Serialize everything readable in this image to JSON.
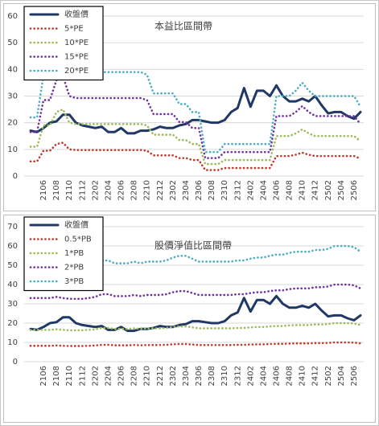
{
  "chart_data": [
    {
      "type": "line",
      "annotation": "本益比區間帶",
      "categories": [
        null,
        null,
        "2106",
        null,
        "2108",
        null,
        "2110",
        null,
        "2112",
        null,
        "2202",
        null,
        "2204",
        null,
        "2206",
        null,
        "2208",
        null,
        "2210",
        null,
        "2212",
        null,
        "2302",
        null,
        "2304",
        null,
        "2306",
        null,
        "2308",
        null,
        "2310",
        null,
        "2312",
        null,
        "2402",
        null,
        "2404",
        null,
        "2406",
        null,
        "2408",
        null,
        "2410",
        null,
        "2412",
        null,
        "2502",
        null,
        "2504",
        null,
        "2506",
        null
      ],
      "ylim": [
        0,
        60
      ],
      "yticks": [
        0,
        10,
        20,
        30,
        40,
        50,
        60
      ],
      "grid": true,
      "legend": "top-left",
      "series": [
        {
          "name": "收盤價",
          "color": "#1f3864",
          "values": [
            17,
            16.5,
            18,
            20,
            20.5,
            23,
            23,
            20,
            19,
            18.5,
            18,
            18.5,
            16.5,
            16.5,
            18,
            16,
            16,
            17,
            17,
            17.5,
            18.5,
            18,
            18,
            19,
            19.5,
            21,
            21,
            20.5,
            20,
            20,
            21,
            24,
            25.5,
            33,
            26,
            32,
            32,
            30,
            34,
            30,
            28,
            28,
            29,
            28,
            30,
            26.5,
            23.5,
            24,
            24,
            22.5,
            21.5,
            24
          ]
        },
        {
          "name": "5*PE",
          "color": "#c0392b",
          "values": [
            5.5,
            5.5,
            9.5,
            9.5,
            12,
            12.5,
            10,
            9.75,
            9.75,
            9.75,
            9.75,
            9.75,
            9.75,
            9.75,
            9.75,
            9.75,
            9.75,
            9.75,
            9.5,
            7.75,
            7.75,
            7.75,
            7.75,
            6.75,
            6.75,
            6,
            6,
            2.25,
            2.25,
            2.25,
            3,
            3,
            3,
            3,
            3,
            3,
            3,
            3,
            7.5,
            7.5,
            7.5,
            8,
            8.75,
            8,
            7.5,
            7.5,
            7.5,
            7.5,
            7.5,
            7.5,
            7.5,
            6.5
          ]
        },
        {
          "name": "10*PE",
          "color": "#9bbb59",
          "values": [
            11,
            11,
            19,
            19,
            24,
            25,
            20,
            19.5,
            19.5,
            19.5,
            19.5,
            19.5,
            19.5,
            19.5,
            19.5,
            19.5,
            19.5,
            19.5,
            19,
            15.5,
            15.5,
            15.5,
            15.5,
            13.5,
            13.5,
            12,
            12,
            4.5,
            4.5,
            4.5,
            6,
            6,
            6,
            6,
            6,
            6,
            6,
            6,
            15,
            15,
            15,
            16,
            17.5,
            16,
            15,
            15,
            15,
            15,
            15,
            15,
            15,
            13
          ]
        },
        {
          "name": "15*PE",
          "color": "#7030a0",
          "values": [
            16.5,
            16.5,
            28.5,
            28.5,
            36,
            37.5,
            30,
            29.25,
            29.25,
            29.25,
            29.25,
            29.25,
            29.25,
            29.25,
            29.25,
            29.25,
            29.25,
            29.25,
            28.5,
            23.25,
            23.25,
            23.25,
            23.25,
            20.25,
            20.25,
            18,
            18,
            6.75,
            6.75,
            6.75,
            9,
            9,
            9,
            9,
            9,
            9,
            9,
            9,
            22.5,
            22.5,
            22.5,
            24,
            26.25,
            24,
            22.5,
            22.5,
            22.5,
            22.5,
            22.5,
            22.5,
            22.5,
            19.5
          ]
        },
        {
          "name": "20*PE",
          "color": "#4bacc6",
          "values": [
            22,
            22,
            38,
            38,
            48,
            50,
            40,
            39,
            39,
            39,
            39,
            39,
            39,
            39,
            39,
            39,
            39,
            39,
            38,
            31,
            31,
            31,
            31,
            27,
            27,
            24,
            24,
            9,
            9,
            9,
            12,
            12,
            12,
            12,
            12,
            12,
            12,
            12,
            30,
            30,
            30,
            32,
            35,
            32,
            30,
            30,
            30,
            30,
            30,
            30,
            30,
            26
          ]
        }
      ]
    },
    {
      "type": "line",
      "annotation": "股價淨值比區間帶",
      "categories": [
        null,
        null,
        "2106",
        null,
        "2108",
        null,
        "2110",
        null,
        "2112",
        null,
        "2202",
        null,
        "2204",
        null,
        "2206",
        null,
        "2208",
        null,
        "2210",
        null,
        "2212",
        null,
        "2302",
        null,
        "2304",
        null,
        "2306",
        null,
        "2308",
        null,
        "2310",
        null,
        "2312",
        null,
        "2402",
        null,
        "2404",
        null,
        "2406",
        null,
        "2408",
        null,
        "2410",
        null,
        "2412",
        null,
        "2502",
        null,
        "2504",
        null,
        "2506",
        null
      ],
      "ylim": [
        0,
        70
      ],
      "yticks": [
        0,
        10,
        20,
        30,
        40,
        50,
        60,
        70
      ],
      "grid": true,
      "legend": "top-left",
      "series": [
        {
          "name": "收盤價",
          "color": "#1f3864",
          "values": [
            17,
            16.5,
            18,
            20,
            20.5,
            23,
            23,
            20,
            19,
            18.5,
            18,
            18.5,
            16.5,
            16.5,
            18,
            16,
            16,
            17,
            17,
            17.5,
            18.5,
            18,
            18,
            19,
            19.5,
            21,
            21,
            20.5,
            20,
            20,
            21,
            24,
            25.5,
            33,
            26,
            32,
            32,
            30,
            34,
            30,
            28,
            28,
            29,
            28,
            30,
            26.5,
            23.5,
            24,
            24,
            22.5,
            21.5,
            24
          ]
        },
        {
          "name": "0.5*PB",
          "color": "#c0392b",
          "values": [
            8.25,
            8.25,
            8.25,
            8.25,
            8.4,
            8.25,
            8.15,
            8.15,
            8.15,
            8.25,
            8.4,
            8.75,
            8.75,
            8.5,
            8.5,
            8.5,
            8.65,
            8.5,
            8.65,
            8.65,
            8.65,
            8.75,
            9,
            9.15,
            9.15,
            8.9,
            8.65,
            8.65,
            8.65,
            8.65,
            8.65,
            8.65,
            8.75,
            8.75,
            8.9,
            9,
            9,
            9.15,
            9.25,
            9.25,
            9.4,
            9.5,
            9.5,
            9.5,
            9.65,
            9.65,
            9.75,
            10,
            10,
            10,
            9.9,
            9.5
          ]
        },
        {
          "name": "1*PB",
          "color": "#9bbb59",
          "values": [
            16.5,
            16.5,
            16.5,
            16.5,
            16.8,
            16.5,
            16.3,
            16.3,
            16.3,
            16.5,
            16.8,
            17.5,
            17.5,
            17,
            17,
            17,
            17.3,
            17,
            17.3,
            17.3,
            17.3,
            17.5,
            18,
            18.3,
            18.3,
            17.8,
            17.3,
            17.3,
            17.3,
            17.3,
            17.3,
            17.3,
            17.5,
            17.5,
            17.8,
            18,
            18,
            18.3,
            18.5,
            18.5,
            18.8,
            19,
            19,
            19,
            19.3,
            19.3,
            19.5,
            20,
            20,
            20,
            19.8,
            19
          ]
        },
        {
          "name": "2*PB",
          "color": "#7030a0",
          "values": [
            33,
            33,
            33,
            33,
            33.6,
            33,
            32.6,
            32.6,
            32.6,
            33,
            33.6,
            35,
            35,
            34,
            34,
            34,
            34.6,
            34,
            34.6,
            34.6,
            34.6,
            35,
            36,
            36.6,
            36.6,
            35.6,
            34.6,
            34.6,
            34.6,
            34.6,
            34.6,
            34.6,
            35,
            35,
            35.6,
            36,
            36,
            36.6,
            37,
            37,
            37.6,
            38,
            38,
            38,
            38.6,
            38.6,
            39,
            40,
            40,
            40,
            39.6,
            38
          ]
        },
        {
          "name": "3*PB",
          "color": "#4bacc6",
          "values": [
            49.5,
            49.5,
            49.5,
            49.5,
            50.4,
            49.5,
            48.9,
            48.9,
            48.9,
            49.5,
            50.4,
            52.5,
            52.5,
            51,
            51,
            51,
            51.9,
            51,
            51.9,
            51.9,
            51.9,
            52.5,
            54,
            54.9,
            54.9,
            53.4,
            51.9,
            51.9,
            51.9,
            51.9,
            51.9,
            51.9,
            52.5,
            52.5,
            53.4,
            54,
            54,
            54.9,
            55.5,
            55.5,
            56.4,
            57,
            57,
            57,
            57.9,
            57.9,
            58.5,
            60,
            60,
            60,
            59.4,
            57
          ]
        }
      ]
    }
  ]
}
